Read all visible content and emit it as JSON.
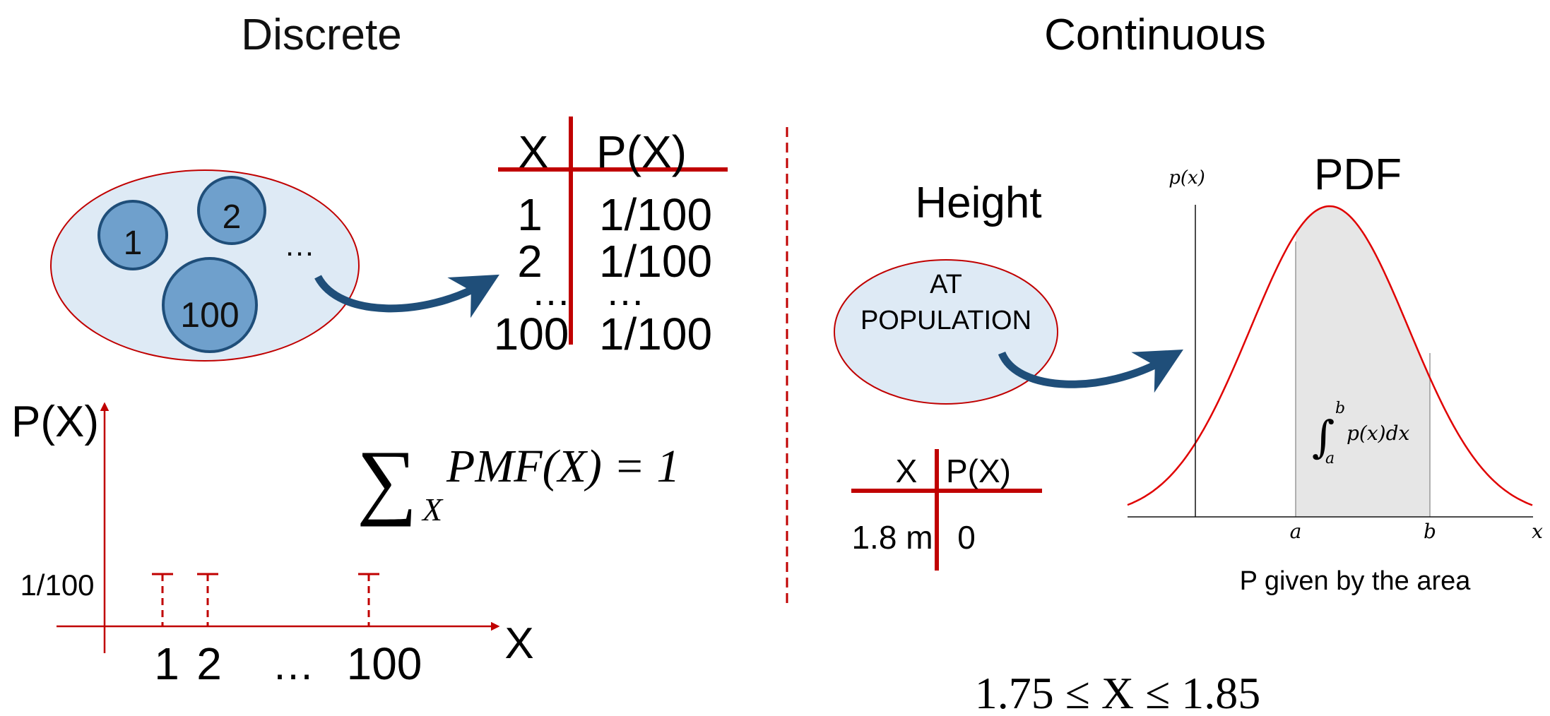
{
  "discrete": {
    "title": "Discrete",
    "bubbles": [
      "1",
      "2",
      "100"
    ],
    "ellipsis": "…",
    "table": {
      "header_x": "X",
      "header_p": "P(X)",
      "rows": [
        {
          "x": "1",
          "p": "1/100"
        },
        {
          "x": "2",
          "p": "1/100"
        },
        {
          "x": "…",
          "p": "…"
        },
        {
          "x": "100",
          "p": "1/100"
        }
      ]
    },
    "axis": {
      "ylabel": "P(X)",
      "xlabel": "X",
      "ytick": "1/100",
      "xticks": [
        "1",
        "2",
        "…",
        "100"
      ]
    },
    "formula": {
      "sum": "∑",
      "subscript": "X",
      "expression": "PMF(X) = 1"
    }
  },
  "continuous": {
    "title": "Continuous",
    "population_title": "Height",
    "population_label_line1": "AT",
    "population_label_line2": "POPULATION",
    "table": {
      "header_x": "X",
      "header_p": "P(X)",
      "row_x": "1.8 m",
      "row_p": "0"
    },
    "pdf": {
      "title": "PDF",
      "ylabel": "p(x)",
      "xlabel": "x",
      "a_label": "a",
      "b_label": "b",
      "integral": "∫",
      "int_upper": "b",
      "int_lower": "a",
      "integrand": "p(x)dx",
      "caption": "P given by the area"
    },
    "interval": "1.75 ≤ X ≤ 1.85"
  },
  "colors": {
    "red": "#c00000",
    "bubble_fill": "#6fa0cc",
    "bubble_stroke": "#1f4e79",
    "ellipse_fill": "#deeaf5",
    "arrow": "#1f4e79",
    "area_fill": "#e6e6e6"
  }
}
